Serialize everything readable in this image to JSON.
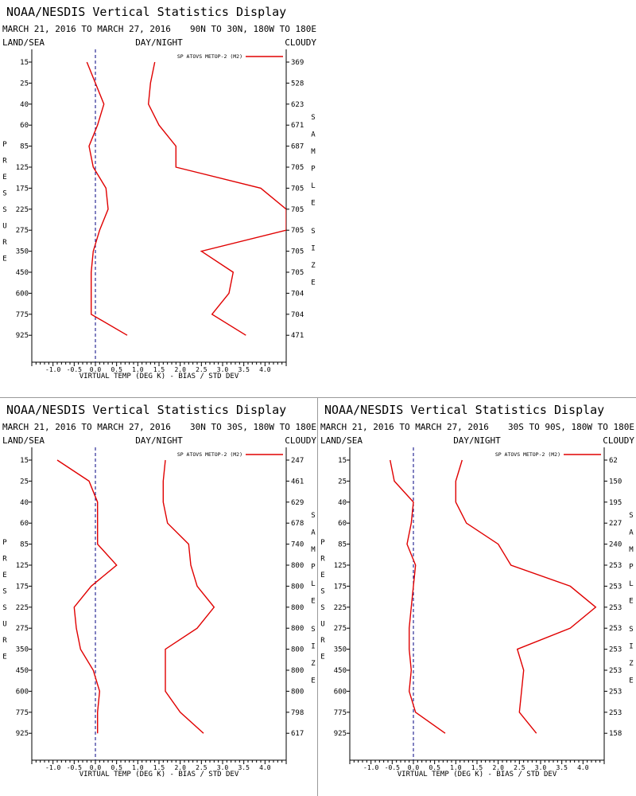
{
  "colors": {
    "series": "#e00000",
    "axis": "#000000",
    "zero_line": "#000080",
    "divider": "#9a9a9a"
  },
  "chart_data": [
    {
      "type": "line",
      "title": "NOAA/NESDIS Vertical Statistics Display",
      "dates": "MARCH 21, 2016 TO MARCH 27, 2016",
      "region": "90N TO 30N, 180W TO 180E",
      "filter_left": "LAND/SEA",
      "filter_center": "DAY/NIGHT",
      "filter_right": "CLOUDY",
      "ylabel": "PRESSURE",
      "y2label": "SAMPLE SIZE",
      "xlabel": "VIRTUAL TEMP (DEG K) - BIAS / STD DEV",
      "xlim": [
        -1.5,
        4.5
      ],
      "x_ticks": [
        "-1.0",
        "-0.5",
        "0.0",
        "0.5",
        "1.0",
        "1.5",
        "2.0",
        "2.5",
        "3.0",
        "3.5",
        "4.0"
      ],
      "pressure_levels": [
        "15",
        "25",
        "40",
        "60",
        "85",
        "125",
        "175",
        "225",
        "275",
        "350",
        "450",
        "600",
        "775",
        "925"
      ],
      "sample_size": [
        "369",
        "528",
        "623",
        "671",
        "687",
        "705",
        "705",
        "705",
        "705",
        "705",
        "705",
        "704",
        "704",
        "471"
      ],
      "legend": "SP ATOVS METOP-2 (M2)",
      "series": [
        {
          "values": [
            -0.2,
            0.0,
            0.2,
            0.05,
            -0.15,
            -0.05,
            0.25,
            0.3,
            0.1,
            -0.05,
            -0.1,
            -0.1,
            -0.1,
            0.75
          ]
        },
        {
          "values": [
            1.4,
            1.3,
            1.25,
            1.5,
            1.9,
            1.9,
            3.9,
            4.5,
            4.5,
            2.5,
            3.25,
            3.15,
            2.75,
            3.55
          ]
        }
      ]
    },
    {
      "type": "line",
      "title": "NOAA/NESDIS Vertical Statistics Display",
      "dates": "MARCH 21, 2016 TO MARCH 27, 2016",
      "region": "30N TO 30S, 180W TO 180E",
      "filter_left": "LAND/SEA",
      "filter_center": "DAY/NIGHT",
      "filter_right": "CLOUDY",
      "ylabel": "PRESSURE",
      "y2label": "SAMPLE SIZE",
      "xlabel": "VIRTUAL TEMP (DEG K) - BIAS / STD DEV",
      "xlim": [
        -1.5,
        4.5
      ],
      "x_ticks": [
        "-1.0",
        "-0.5",
        "0.0",
        "0.5",
        "1.0",
        "1.5",
        "2.0",
        "2.5",
        "3.0",
        "3.5",
        "4.0"
      ],
      "pressure_levels": [
        "15",
        "25",
        "40",
        "60",
        "85",
        "125",
        "175",
        "225",
        "275",
        "350",
        "450",
        "600",
        "775",
        "925"
      ],
      "sample_size": [
        "247",
        "461",
        "629",
        "678",
        "740",
        "800",
        "800",
        "800",
        "800",
        "800",
        "800",
        "800",
        "798",
        "617"
      ],
      "legend": "SP ATOVS METOP-2 (M2)",
      "series": [
        {
          "values": [
            -0.9,
            -0.15,
            0.05,
            0.05,
            0.05,
            0.5,
            -0.1,
            -0.5,
            -0.45,
            -0.35,
            -0.05,
            0.1,
            0.05,
            0.05
          ]
        },
        {
          "values": [
            1.65,
            1.6,
            1.6,
            1.7,
            2.2,
            2.25,
            2.4,
            2.8,
            2.4,
            1.65,
            1.65,
            1.65,
            2.0,
            2.55
          ]
        }
      ]
    },
    {
      "type": "line",
      "title": "NOAA/NESDIS Vertical Statistics Display",
      "dates": "MARCH 21, 2016 TO MARCH 27, 2016",
      "region": "30S TO 90S, 180W TO 180E",
      "filter_left": "LAND/SEA",
      "filter_center": "DAY/NIGHT",
      "filter_right": "CLOUDY",
      "ylabel": "PRESSURE",
      "y2label": "SAMPLE SIZE",
      "xlabel": "VIRTUAL TEMP (DEG K) - BIAS / STD DEV",
      "xlim": [
        -1.5,
        4.5
      ],
      "x_ticks": [
        "-1.0",
        "-0.5",
        "0.0",
        "0.5",
        "1.0",
        "1.5",
        "2.0",
        "2.5",
        "3.0",
        "3.5",
        "4.0"
      ],
      "pressure_levels": [
        "15",
        "25",
        "40",
        "60",
        "85",
        "125",
        "175",
        "225",
        "275",
        "350",
        "450",
        "600",
        "775",
        "925"
      ],
      "sample_size": [
        "62",
        "150",
        "195",
        "227",
        "240",
        "253",
        "253",
        "253",
        "253",
        "253",
        "253",
        "253",
        "253",
        "158"
      ],
      "legend": "SP ATOVS METOP-2 (M2)",
      "series": [
        {
          "values": [
            -0.55,
            -0.45,
            0.0,
            -0.05,
            -0.15,
            0.05,
            0.0,
            -0.05,
            -0.1,
            -0.1,
            -0.05,
            -0.1,
            0.05,
            0.75
          ]
        },
        {
          "values": [
            1.15,
            1.0,
            1.0,
            1.25,
            2.0,
            2.3,
            3.7,
            4.3,
            3.7,
            2.45,
            2.6,
            2.55,
            2.5,
            2.9
          ]
        }
      ]
    }
  ]
}
